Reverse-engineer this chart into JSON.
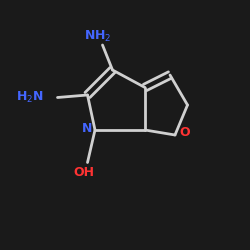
{
  "bg_color": "#1a1a1a",
  "bond_color": "#d0d0d0",
  "bond_width": 2.0,
  "N_color": "#4466ff",
  "O_color": "#ff3333",
  "figsize": [
    2.5,
    2.5
  ],
  "dpi": 100,
  "xlim": [
    0,
    10
  ],
  "ylim": [
    0,
    10
  ]
}
